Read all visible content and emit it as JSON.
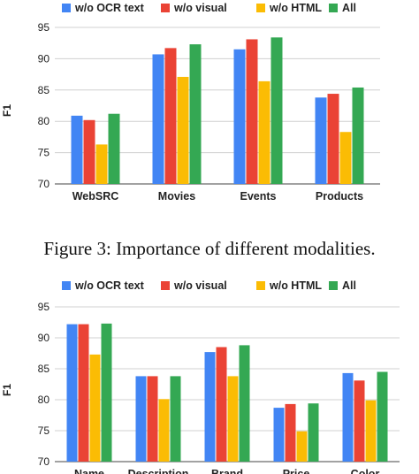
{
  "caption": "Figure 3: Importance of different modalities.",
  "chart_data": [
    {
      "type": "bar",
      "xlabel": "",
      "ylabel": "F1",
      "ylim": [
        70,
        95
      ],
      "yticks": [
        70,
        75,
        80,
        85,
        90,
        95
      ],
      "grid": true,
      "legend_position": "top",
      "categories": [
        "WebSRC",
        "Movies",
        "Events",
        "Products"
      ],
      "series": [
        {
          "name": "w/o OCR text",
          "color": "#4285f4",
          "values": [
            80.9,
            90.7,
            91.5,
            83.8
          ]
        },
        {
          "name": "w/o visual",
          "color": "#ea4335",
          "values": [
            80.2,
            91.7,
            93.1,
            84.4
          ]
        },
        {
          "name": "w/o HTML",
          "color": "#fbbc04",
          "values": [
            76.3,
            87.1,
            86.4,
            78.3
          ]
        },
        {
          "name": "All",
          "color": "#34a853",
          "values": [
            81.2,
            92.3,
            93.4,
            85.4
          ]
        }
      ]
    },
    {
      "type": "bar",
      "xlabel": "",
      "ylabel": "F1",
      "ylim": [
        70,
        95
      ],
      "yticks": [
        70,
        75,
        80,
        85,
        90,
        95
      ],
      "grid": true,
      "legend_position": "top",
      "categories": [
        "Name",
        "Description",
        "Brand",
        "Price",
        "Color"
      ],
      "series": [
        {
          "name": "w/o OCR text",
          "color": "#4285f4",
          "values": [
            92.2,
            83.8,
            87.7,
            78.7,
            84.3
          ]
        },
        {
          "name": "w/o visual",
          "color": "#ea4335",
          "values": [
            92.2,
            83.8,
            88.5,
            79.3,
            83.1
          ]
        },
        {
          "name": "w/o HTML",
          "color": "#fbbc04",
          "values": [
            87.3,
            80.1,
            83.8,
            74.9,
            79.9
          ]
        },
        {
          "name": "All",
          "color": "#34a853",
          "values": [
            92.3,
            83.8,
            88.8,
            79.4,
            84.5
          ]
        }
      ]
    }
  ]
}
